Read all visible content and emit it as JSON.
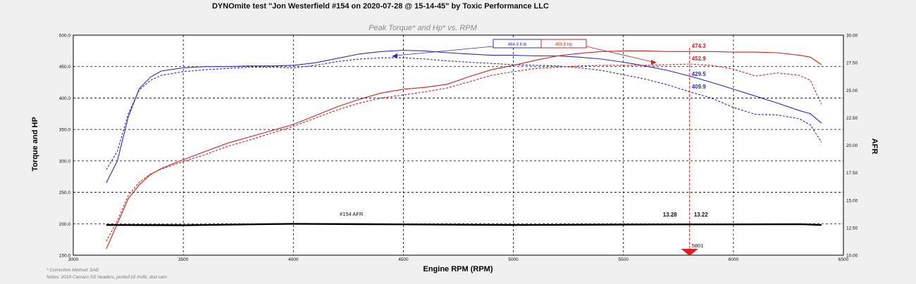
{
  "title": "DYNOmite test \"Jon Westerfield #154 on 2020-07-28 @ 15-14-45\" by Toxic Performance LLC",
  "notes": {
    "correction": "* Correction Method: SAE",
    "details": "Notes: 2019 Camaro SS headers, ported l/2 im/tb, dod cam"
  },
  "colors": {
    "torque": "#2b2bc8",
    "hp": "#d42020",
    "afr": "#000000",
    "marker": "#e02020",
    "background": "#f0f0f0"
  },
  "chart_data": {
    "type": "line",
    "title": "Peak Torque* and Hp* vs. RPM",
    "xlabel": "Engine RPM (RPM)",
    "ylabel": "Torque and HP",
    "y2label": "AFR",
    "xlim": [
      3000,
      6500
    ],
    "ylim": [
      150,
      500
    ],
    "y2lim": [
      10,
      30
    ],
    "grid": true,
    "x_ticks": [
      "3000",
      "3500",
      "4000",
      "4500",
      "5000",
      "5500",
      "6000",
      "6500"
    ],
    "y_ticks": [
      "150.0",
      "200.0",
      "250.0",
      "300.0",
      "350.0",
      "400.0",
      "450.0",
      "500.0"
    ],
    "y2_ticks": [
      "10.00",
      "12.50",
      "15.00",
      "17.50",
      "20.00",
      "22.50",
      "25.00",
      "27.50",
      "30.00"
    ],
    "legend": {
      "torque_peak": "464.9 ft-lb",
      "hp_peak": "455.5 Hp",
      "afr_label": "#154 AFR"
    },
    "marker": {
      "rpm": 5801,
      "label": "5801"
    },
    "readouts": [
      {
        "text": "474.3",
        "series": "hp"
      },
      {
        "text": "452.9",
        "series": "hp"
      },
      {
        "text": "429.5",
        "series": "torque"
      },
      {
        "text": "409.9",
        "series": "torque"
      },
      {
        "text": "13.28",
        "series": "afr"
      },
      {
        "text": "13.22",
        "series": "afr"
      }
    ],
    "series": [
      {
        "name": "torque",
        "style": "solid",
        "x": [
          3150,
          3200,
          3250,
          3300,
          3350,
          3400,
          3500,
          3600,
          3700,
          3800,
          3900,
          4000,
          4100,
          4200,
          4300,
          4400,
          4500,
          4600,
          4700,
          4800,
          4900,
          5000,
          5100,
          5200,
          5300,
          5400,
          5500,
          5600,
          5700,
          5800,
          5900,
          6000,
          6100,
          6200,
          6300,
          6350,
          6400
        ],
        "y": [
          265,
          300,
          370,
          415,
          433,
          443,
          448,
          450,
          450,
          451,
          451,
          452,
          456,
          463,
          470,
          474,
          476,
          475,
          472,
          470,
          468,
          468,
          467,
          467,
          465,
          462,
          457,
          451,
          444,
          435,
          425,
          414,
          403,
          392,
          380,
          375,
          360
        ]
      },
      {
        "name": "torque (baseline)",
        "style": "dashed",
        "x": [
          3150,
          3200,
          3250,
          3300,
          3350,
          3400,
          3500,
          3600,
          3700,
          3800,
          3900,
          4000,
          4100,
          4200,
          4300,
          4400,
          4500,
          4600,
          4700,
          4800,
          4900,
          5000,
          5100,
          5200,
          5300,
          5400,
          5500,
          5600,
          5700,
          5800,
          5900,
          6000,
          6100,
          6200,
          6300,
          6350,
          6400
        ],
        "y": [
          286,
          315,
          375,
          413,
          428,
          436,
          442,
          445,
          447,
          449,
          449,
          448,
          452,
          458,
          462,
          464,
          464,
          462,
          459,
          457,
          455,
          453,
          452,
          451,
          448,
          444,
          437,
          430,
          421,
          410,
          400,
          385,
          374,
          373,
          367,
          357,
          330
        ]
      },
      {
        "name": "hp",
        "style": "solid",
        "x": [
          3150,
          3200,
          3250,
          3300,
          3350,
          3400,
          3500,
          3600,
          3700,
          3800,
          3900,
          4000,
          4100,
          4200,
          4300,
          4400,
          4500,
          4600,
          4700,
          4800,
          4900,
          5000,
          5100,
          5200,
          5300,
          5400,
          5500,
          5600,
          5700,
          5800,
          5900,
          6000,
          6100,
          6200,
          6300,
          6350,
          6400
        ],
        "y": [
          160,
          200,
          240,
          262,
          278,
          288,
          302,
          315,
          328,
          338,
          348,
          358,
          372,
          386,
          398,
          408,
          414,
          417,
          422,
          434,
          445,
          452,
          460,
          467,
          471,
          474,
          475,
          475,
          474,
          474,
          474,
          473,
          473,
          472,
          468,
          465,
          453
        ]
      },
      {
        "name": "hp (baseline)",
        "style": "dashed",
        "x": [
          3150,
          3200,
          3250,
          3300,
          3350,
          3400,
          3500,
          3600,
          3700,
          3800,
          3900,
          4000,
          4100,
          4200,
          4300,
          4400,
          4500,
          4600,
          4700,
          4800,
          4900,
          5000,
          5100,
          5200,
          5300,
          5400,
          5500,
          5600,
          5700,
          5800,
          5900,
          6000,
          6100,
          6200,
          6300,
          6350,
          6400
        ],
        "y": [
          172,
          205,
          245,
          266,
          279,
          287,
          299,
          310,
          323,
          333,
          344,
          355,
          368,
          381,
          392,
          400,
          405,
          410,
          416,
          426,
          436,
          442,
          447,
          449,
          451,
          452,
          452,
          452,
          453,
          454,
          452,
          446,
          435,
          440,
          436,
          428,
          390
        ]
      },
      {
        "name": "afr",
        "style": "solid",
        "x": [
          3150,
          3500,
          4000,
          4500,
          5000,
          5500,
          5800,
          6000,
          6300,
          6400
        ],
        "y2": [
          12.75,
          12.72,
          12.85,
          12.8,
          12.75,
          12.78,
          12.8,
          12.8,
          12.82,
          12.75
        ]
      }
    ]
  }
}
